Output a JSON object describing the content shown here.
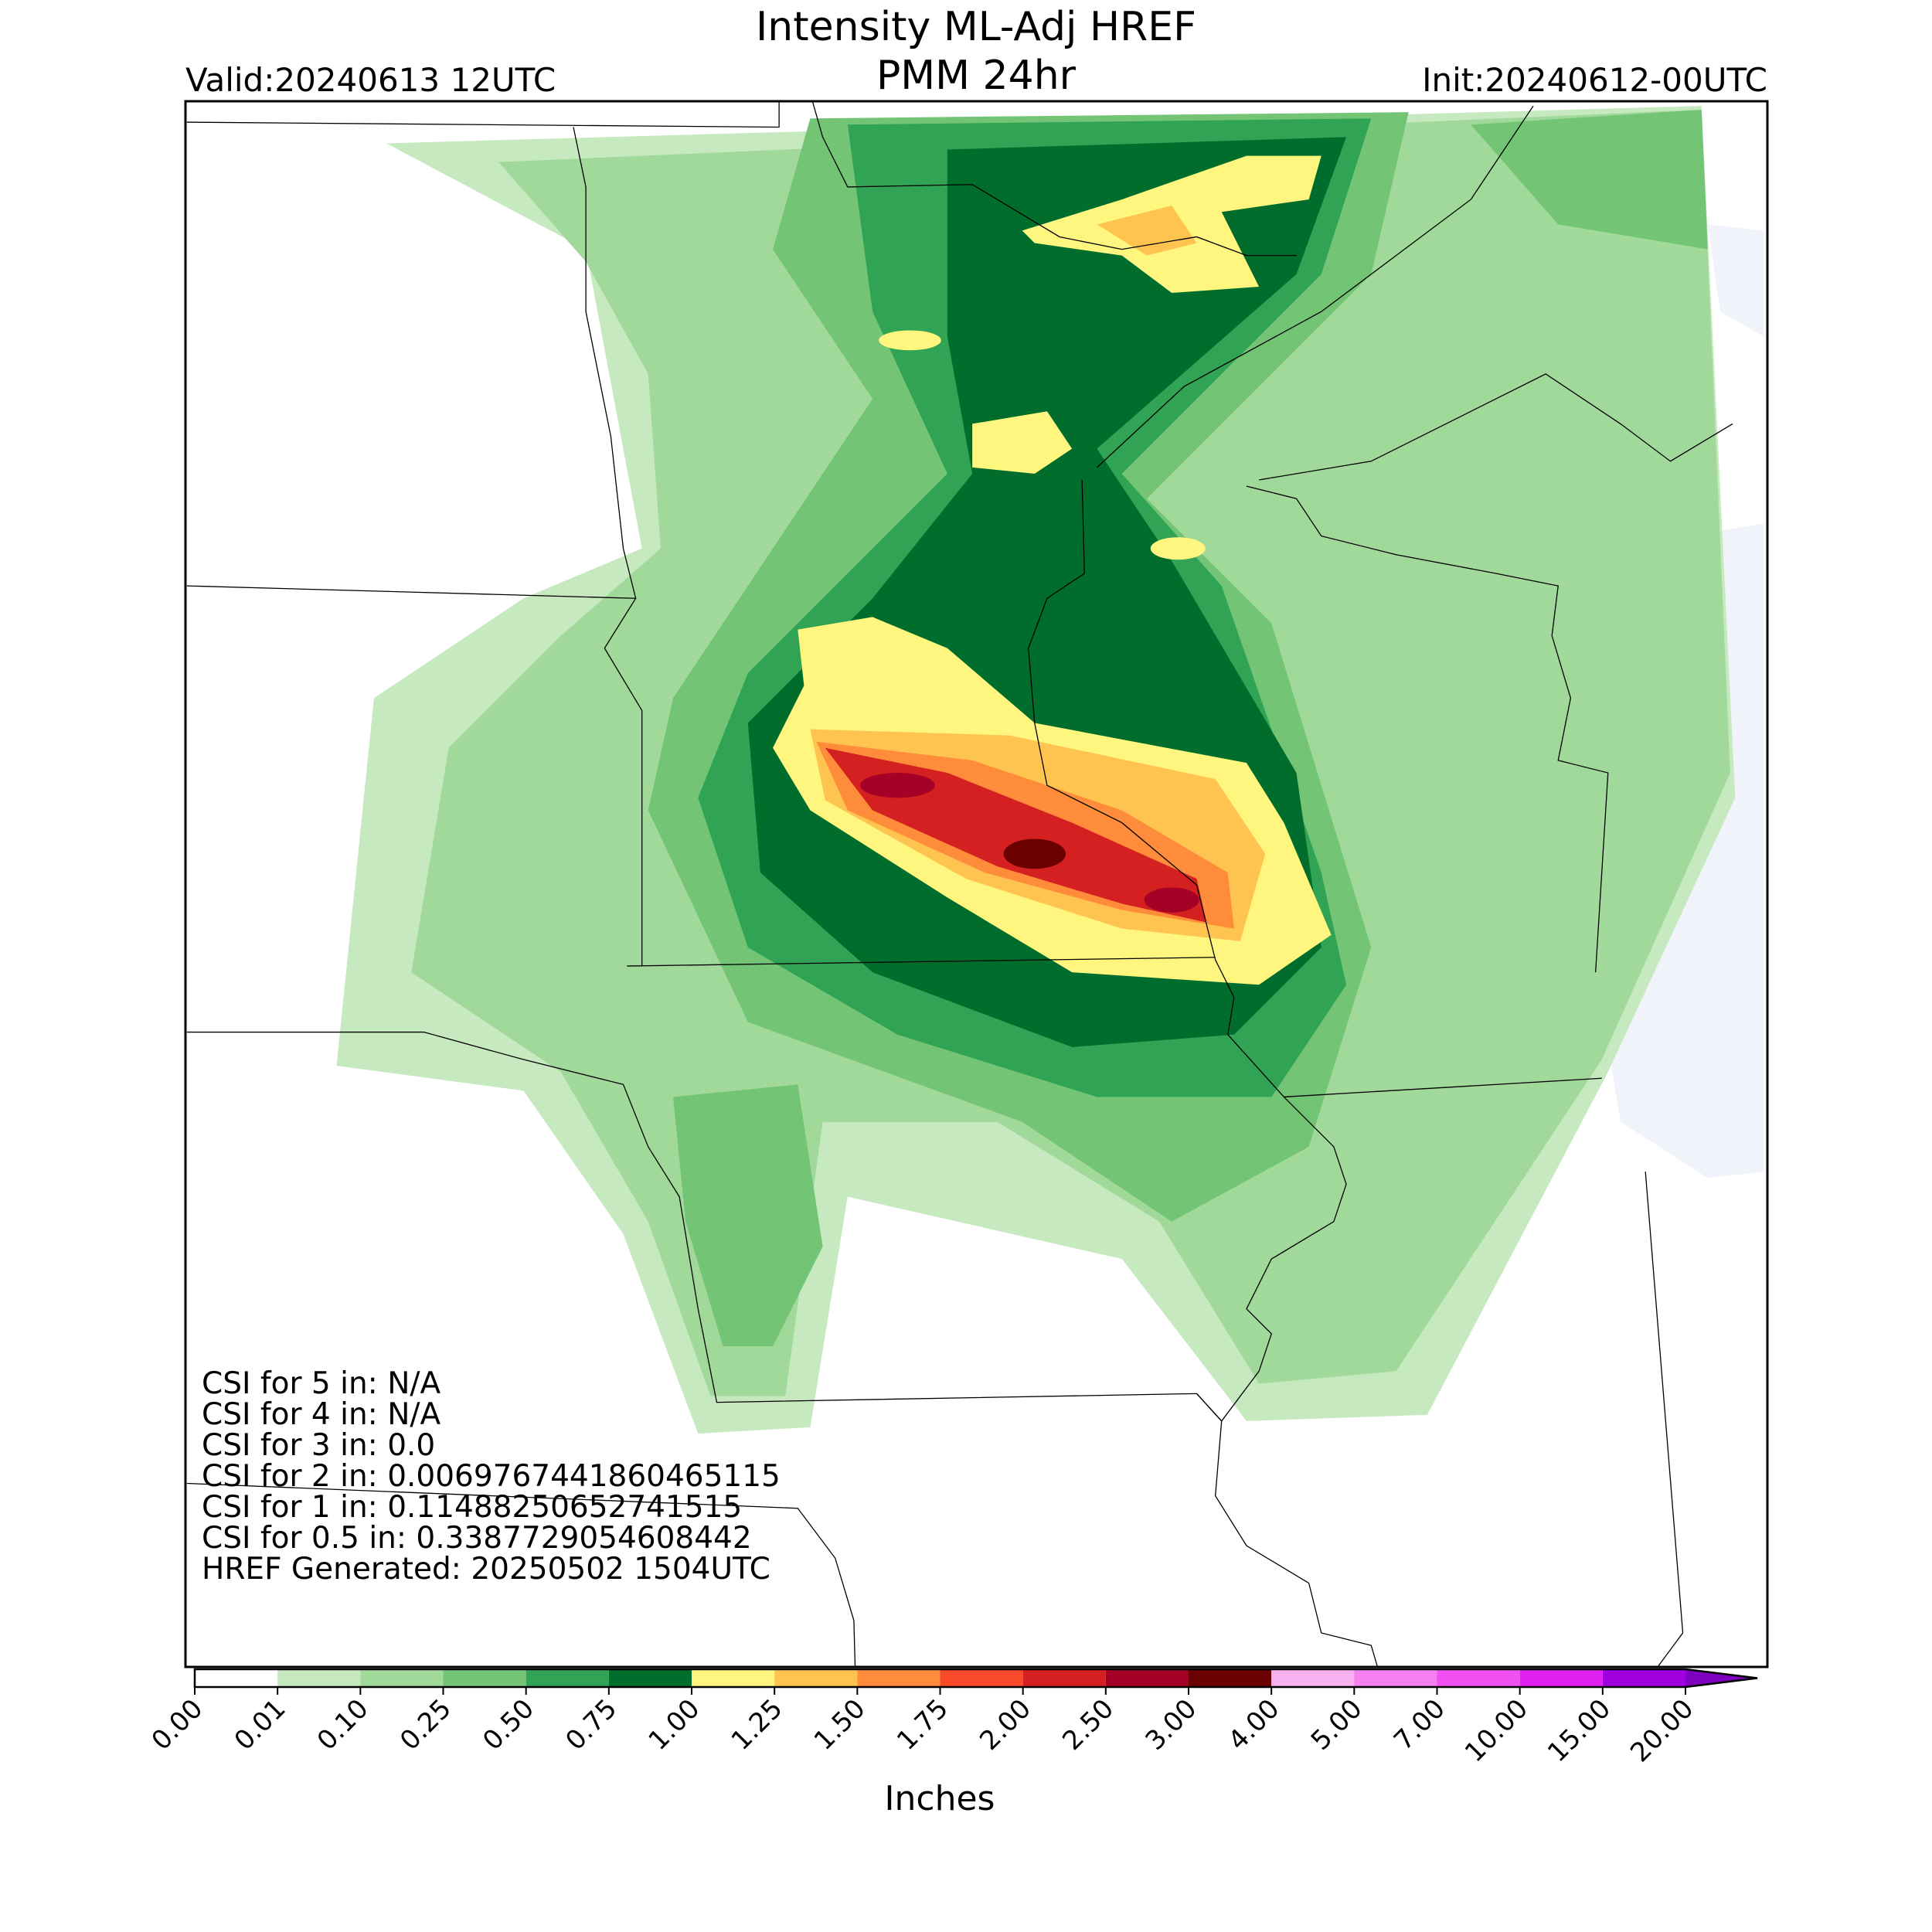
{
  "header": {
    "title": [
      "Intensity ML-Adj HREF",
      "PMM 24hr"
    ],
    "valid": "Valid:20240613 12UTC",
    "init": "Init:20240612-00UTC"
  },
  "stats": [
    "CSI for 5 in: N/A",
    "CSI for 4 in: N/A",
    "CSI for 3 in: 0.0",
    "CSI for 2 in: 0.0069767441860465115",
    "CSI for 1 in: 0.11488250652741515",
    "CSI for 0.5 in: 0.3387729054608442",
    "HREF Generated: 20250502 1504UTC"
  ],
  "colorbar": {
    "label": "Inches",
    "ticks": [
      {
        "value": 0,
        "label": "0.00"
      },
      {
        "value": 0.01,
        "label": "0.01"
      },
      {
        "value": 0.1,
        "label": "0.10"
      },
      {
        "value": 0.25,
        "label": "0.25"
      },
      {
        "value": 0.5,
        "label": "0.50"
      },
      {
        "value": 0.75,
        "label": "0.75"
      },
      {
        "value": 1,
        "label": "1.00"
      },
      {
        "value": 1.25,
        "label": "1.25"
      },
      {
        "value": 1.5,
        "label": "1.50"
      },
      {
        "value": 1.75,
        "label": "1.75"
      },
      {
        "value": 2,
        "label": "2.00"
      },
      {
        "value": 2.5,
        "label": "2.50"
      },
      {
        "value": 3,
        "label": "3.00"
      },
      {
        "value": 4,
        "label": "4.00"
      },
      {
        "value": 5,
        "label": "5.00"
      },
      {
        "value": 7,
        "label": "7.00"
      },
      {
        "value": 10,
        "label": "10.00"
      },
      {
        "value": 15,
        "label": "15.00"
      },
      {
        "value": 20,
        "label": "20.00"
      }
    ],
    "colors": [
      "#ffffff",
      "#c7e9c0",
      "#a1d99b",
      "#74c476",
      "#31a354",
      "#006d2c",
      "#fff680",
      "#ffc450",
      "#ff8c3a",
      "#f84a2a",
      "#d42020",
      "#a50026",
      "#6b0000",
      "#f7b0f0",
      "#f580f0",
      "#f050f0",
      "#e020f0",
      "#a000e0"
    ],
    "extend_color": "#8000c0"
  }
}
